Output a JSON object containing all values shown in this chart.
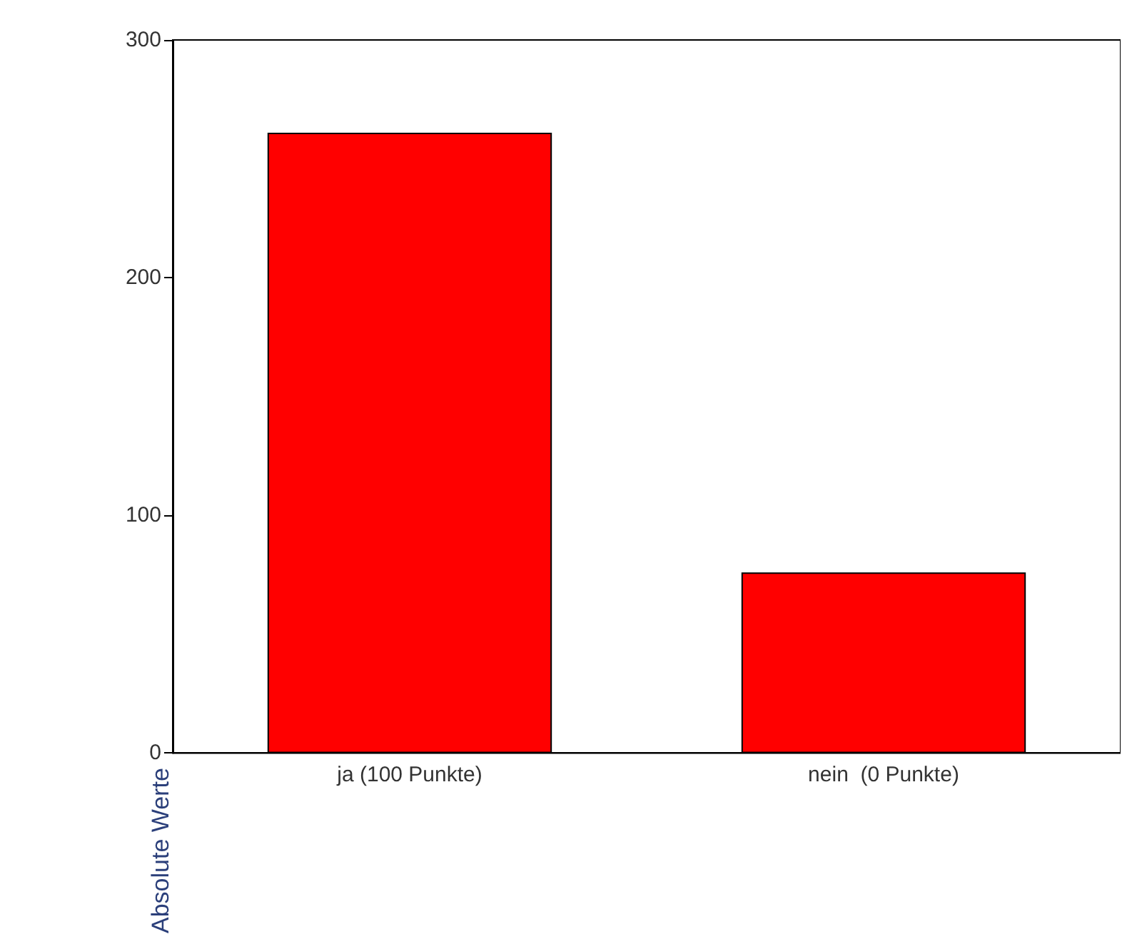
{
  "chart_data": {
    "type": "bar",
    "ylabel": "Absolute Werte",
    "categories": [
      "ja (100 Punkte)",
      "nein  (0 Punkte)"
    ],
    "values": [
      261,
      76
    ],
    "color": "#ff0000",
    "ylim": [
      0,
      300
    ],
    "yticks": [
      0,
      100,
      200,
      300
    ],
    "grid": false
  }
}
